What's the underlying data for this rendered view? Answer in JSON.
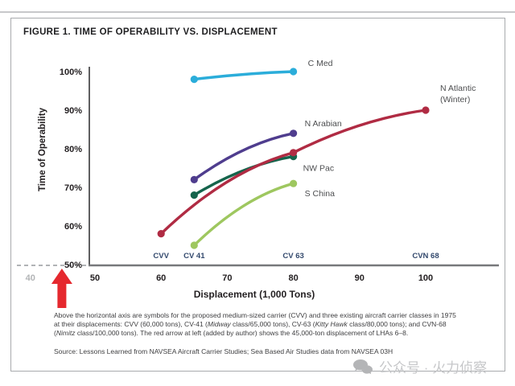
{
  "page": {
    "title": "FIGURE 1. TIME OF OPERABILITY VS. DISPLACEMENT",
    "source": "Source: Lessons Learned from NAVSEA Aircraft Carrier Studies; Sea Based Air Studies data from NAVSEA 03H",
    "watermark": {
      "text": "公众号 · 火力侦察",
      "icon": "wechat-bubbles-icon",
      "color": "#c6c7c9"
    }
  },
  "chart_data": {
    "type": "line",
    "title": "FIGURE 1. TIME OF OPERABILITY VS. DISPLACEMENT",
    "xlabel": "Displacement (1,000 Tons)",
    "ylabel": "Time of Operability",
    "xlim": [
      40,
      103
    ],
    "ylim": [
      50,
      100
    ],
    "x_ticks": [
      50,
      60,
      70,
      80,
      90,
      100
    ],
    "x_tick_extra": {
      "value": 40,
      "color": "#b2b4b6"
    },
    "y_ticks": [
      100,
      90,
      80,
      70,
      60,
      50
    ],
    "y_tick_suffix": "%",
    "grid": false,
    "legend_position": "inline-labels",
    "series": [
      {
        "name": "C Med",
        "color": "#2badda",
        "points": [
          [
            65,
            98
          ],
          [
            80,
            100
          ]
        ],
        "label_lines": [
          "C Med"
        ],
        "label_dx": 18,
        "label_dy": -7,
        "label_lh": 13
      },
      {
        "name": "N Arabian",
        "color": "#4f3d8e",
        "points": [
          [
            65,
            72
          ],
          [
            80,
            84
          ]
        ],
        "label_lines": [
          "N Arabian"
        ],
        "label_dx": 14,
        "label_dy": -9,
        "label_lh": 13
      },
      {
        "name": "NW Pac",
        "color": "#15644c",
        "points": [
          [
            65,
            68
          ],
          [
            80,
            78
          ]
        ],
        "label_lines": [
          "NW Pac"
        ],
        "label_dx": 12,
        "label_dy": 18,
        "label_lh": 13
      },
      {
        "name": "S China",
        "color": "#9ec75f",
        "points": [
          [
            65,
            55
          ],
          [
            80,
            71
          ]
        ],
        "label_lines": [
          "S China"
        ],
        "label_dx": 14,
        "label_dy": 16,
        "label_lh": 13
      },
      {
        "name": "N Atlantic (Winter)",
        "color": "#b02b43",
        "points": [
          [
            60,
            58
          ],
          [
            80,
            79
          ],
          [
            100,
            90
          ]
        ],
        "label_lines": [
          "N Atlantic",
          "(Winter)"
        ],
        "label_dx": 18,
        "label_dy": -24,
        "label_lh": 14
      }
    ],
    "carrier_markers": [
      {
        "label": "CVV",
        "x": 60,
        "color": "#33496d"
      },
      {
        "label": "CV 41",
        "x": 65,
        "color": "#33496d"
      },
      {
        "label": "CV 63",
        "x": 80,
        "color": "#33496d"
      },
      {
        "label": "CVN 68",
        "x": 100,
        "color": "#33496d"
      }
    ],
    "annotation_arrow": {
      "x": 45,
      "color": "#e5282e"
    },
    "axis_color": "#4d4d4f",
    "baseline_color": "#77787b",
    "dashed_extension_color": "#b1b3b6",
    "tick_label_color": "#242022",
    "series_label_color": "#4d4e50"
  },
  "caption": {
    "lines": [
      [
        {
          "t": "Above the horizontal axis are symbols for the proposed medium-sized carrier (CVV) and three existing aircraft carrier classes in 1975"
        }
      ],
      [
        {
          "t": "at their displacements: CVV (60,000 tons), CV-41 ("
        },
        {
          "t": "Midway",
          "i": true
        },
        {
          "t": " class/65,000 tons), CV-63 ("
        },
        {
          "t": "Kitty Hawk",
          "i": true
        },
        {
          "t": " class/80,000 tons); and CVN-68"
        }
      ],
      [
        {
          "t": "("
        },
        {
          "t": "Nimitz",
          "i": true
        },
        {
          "t": " class/100,000 tons). The red arrow at left (added by author) shows the 45,000-ton displacement of LHAs 6–8."
        }
      ]
    ]
  }
}
